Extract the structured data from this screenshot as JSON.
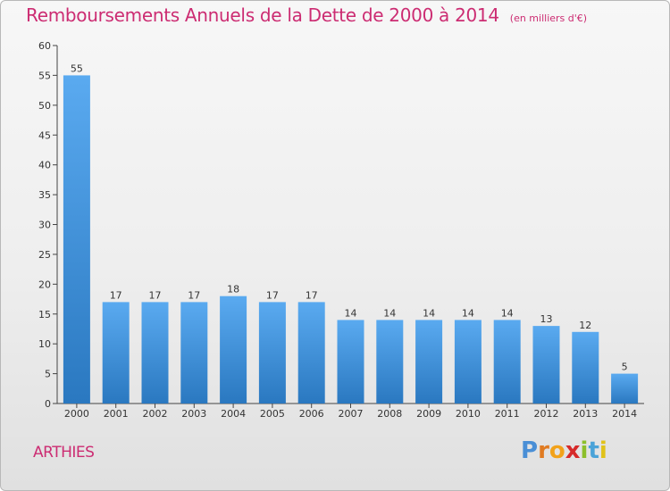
{
  "title": "Remboursements Annuels de la Dette de 2000 à 2014",
  "unit": "(en milliers d'€)",
  "commune": "ARTHIES",
  "logo": {
    "letters": [
      "P",
      "r",
      "o",
      "x",
      "i",
      "t",
      "i"
    ],
    "colors": [
      "#4a8fd6",
      "#e07b22",
      "#f2a21a",
      "#d62a2a",
      "#8cbf2a",
      "#4aa3d8",
      "#e0c21a"
    ]
  },
  "colors": {
    "title": "#cc2c72",
    "bar_light": "#5aaaf0",
    "bar_dark": "#2a78c0"
  },
  "chart_data": {
    "type": "bar",
    "title": "Remboursements Annuels de la Dette de 2000 à 2014",
    "categories": [
      "2000",
      "2001",
      "2002",
      "2003",
      "2004",
      "2005",
      "2006",
      "2007",
      "2008",
      "2009",
      "2010",
      "2011",
      "2012",
      "2013",
      "2014"
    ],
    "values": [
      55,
      17,
      17,
      17,
      18,
      17,
      17,
      14,
      14,
      14,
      14,
      14,
      13,
      12,
      5
    ],
    "ylim": [
      0,
      60
    ],
    "yticks": [
      0,
      5,
      10,
      15,
      20,
      25,
      30,
      35,
      40,
      45,
      50,
      55,
      60
    ],
    "grid": false
  }
}
